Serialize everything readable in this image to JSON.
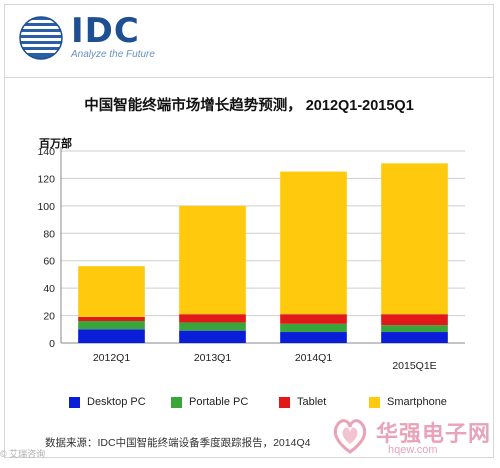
{
  "header": {
    "brand": "IDC",
    "tagline": "Analyze the Future"
  },
  "source_note": "数据来源：IDC中国智能终端设备季度跟踪报告，2014Q4",
  "watermark": {
    "left": "© 艾瑞咨询",
    "right": "华强电子网",
    "url": "hqew.com"
  },
  "colors": {
    "desktop": "#0a1dd9",
    "portable": "#3aa53a",
    "tablet": "#e11919",
    "smartphone": "#ffc90e",
    "brand": "#1d4f91"
  },
  "chart_data": {
    "type": "bar",
    "stacked": true,
    "title": "中国智能终端市场增长趋势预测， 2012Q1-2015Q1",
    "ylabel": "百万部",
    "xlabel": "",
    "categories": [
      "2012Q1",
      "2013Q1",
      "2014Q1",
      "2015Q1E"
    ],
    "ylim": [
      0,
      140
    ],
    "yticks": [
      0,
      20,
      40,
      60,
      80,
      100,
      120,
      140
    ],
    "grid": true,
    "legend_position": "bottom",
    "series": [
      {
        "name": "Desktop PC",
        "color": "#0a1dd9",
        "values": [
          10,
          9,
          8,
          8
        ]
      },
      {
        "name": "Portable PC",
        "color": "#3aa53a",
        "values": [
          6,
          6,
          6,
          5
        ]
      },
      {
        "name": "Tablet",
        "color": "#e11919",
        "values": [
          3,
          6,
          7,
          8
        ]
      },
      {
        "name": "Smartphone",
        "color": "#ffc90e",
        "values": [
          37,
          79,
          104,
          110
        ]
      }
    ]
  }
}
